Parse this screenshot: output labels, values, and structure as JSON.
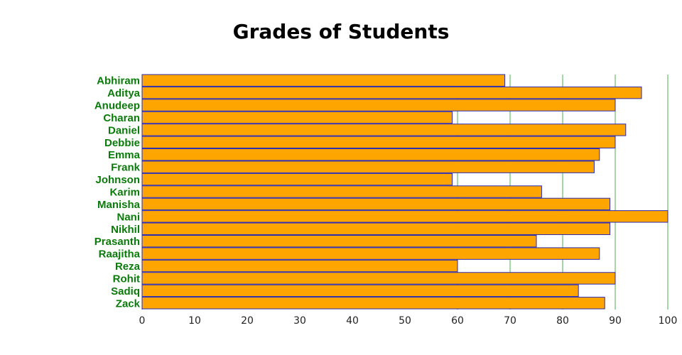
{
  "chart_data": {
    "type": "bar",
    "orientation": "horizontal",
    "title": "Grades of Students",
    "xlabel": "",
    "ylabel": "",
    "categories": [
      "Abhiram",
      "Aditya",
      "Anudeep",
      "Charan",
      "Daniel",
      "Debbie",
      "Emma",
      "Frank",
      "Johnson",
      "Karim",
      "Manisha",
      "Nani",
      "Nikhil",
      "Prasanth",
      "Raajitha",
      "Reza",
      "Rohit",
      "Sadiq",
      "Zack"
    ],
    "values": [
      69,
      95,
      90,
      59,
      92,
      90,
      87,
      86,
      59,
      76,
      89,
      100,
      89,
      75,
      87,
      60,
      90,
      83,
      88
    ],
    "xlim": [
      0,
      100
    ],
    "xticks": [
      0,
      10,
      20,
      30,
      40,
      50,
      60,
      70,
      80,
      90,
      100
    ],
    "grid_x_values": [
      60,
      70,
      80,
      90,
      100
    ],
    "colors": {
      "bar_fill": "#ffa500",
      "bar_edge": "#2a2ab0",
      "grid": "#4caf50",
      "label": "#0a7a0a"
    }
  }
}
